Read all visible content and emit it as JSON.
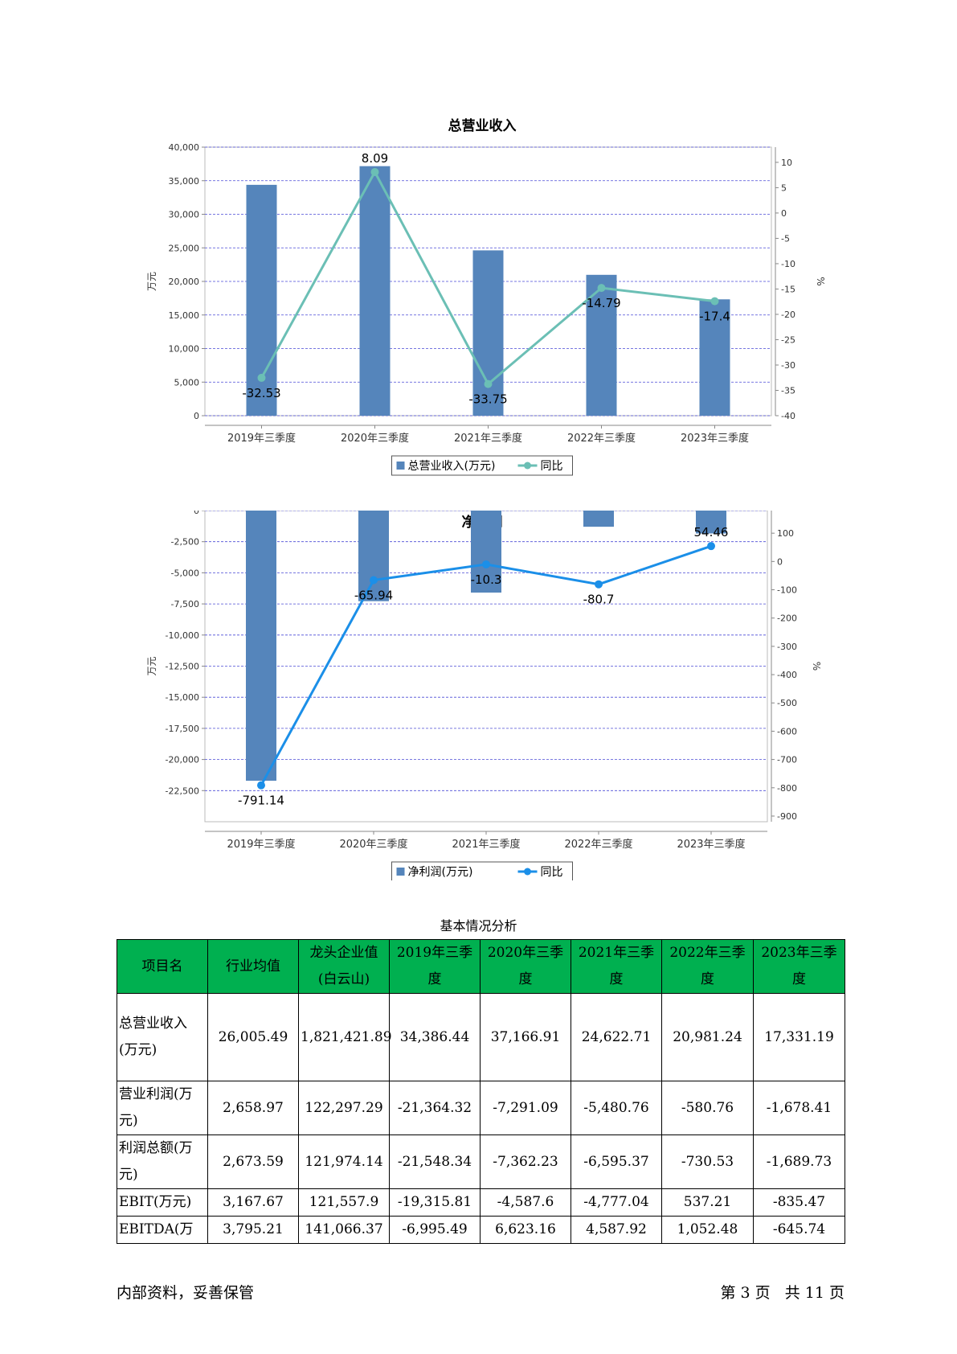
{
  "chart_data": [
    {
      "type": "bar+line",
      "title": "总营业收入",
      "categories": [
        "2019年三季度",
        "2020年三季度",
        "2021年三季度",
        "2022年三季度",
        "2023年三季度"
      ],
      "series": [
        {
          "name": "总营业收入(万元)",
          "type": "bar",
          "axis": "left",
          "color": "#5585bb",
          "values": [
            34386.44,
            37166.91,
            24622.71,
            20981.24,
            17331.19
          ]
        },
        {
          "name": "同比",
          "type": "line",
          "axis": "right",
          "color": "#6bbfb5",
          "values": [
            -32.53,
            8.09,
            -33.75,
            -14.79,
            -17.4
          ],
          "labels": [
            "-32.53",
            "8.09",
            "-33.75",
            "-14.79",
            "-17.4"
          ]
        }
      ],
      "ylabel": "万元",
      "y2label": "%",
      "ylim": [
        0,
        40000
      ],
      "yticks": [
        0,
        5000,
        10000,
        15000,
        20000,
        25000,
        30000,
        35000,
        40000
      ],
      "ytick_labels": [
        "0",
        "5,000",
        "10,000",
        "15,000",
        "20,000",
        "25,000",
        "30,000",
        "35,000",
        "40,000"
      ],
      "y2lim": [
        -40,
        13
      ],
      "y2ticks": [
        -40,
        -35,
        -30,
        -25,
        -20,
        -15,
        -10,
        -5,
        0,
        5,
        10
      ],
      "y2tick_labels": [
        "-40",
        "-35",
        "-30",
        "-25",
        "-20",
        "-15",
        "-10",
        "-5",
        "0",
        "5",
        "10"
      ],
      "grid": true,
      "legend": "bottom-center",
      "legend_items": [
        "总营业收入(万元)",
        "同比"
      ]
    },
    {
      "type": "bar+line",
      "title": "净利润",
      "categories": [
        "2019年三季度",
        "2020年三季度",
        "2021年三季度",
        "2022年三季度",
        "2023年三季度"
      ],
      "series": [
        {
          "name": "净利润(万元)",
          "type": "bar",
          "axis": "left",
          "color": "#5585bb",
          "values": [
            -21705,
            -7280,
            -6590,
            -1300,
            -1840
          ]
        },
        {
          "name": "同比",
          "type": "line",
          "axis": "right",
          "color": "#1b8fe8",
          "values": [
            -791.14,
            -65.94,
            -10.3,
            -80.7,
            54.46
          ],
          "labels": [
            "-791.14",
            "-65.94",
            "-10.3",
            "-80.7",
            "54.46"
          ]
        }
      ],
      "ylabel": "万元",
      "y2label": "%",
      "ylim": [
        -25000,
        0
      ],
      "yticks": [
        0,
        -2500,
        -5000,
        -7500,
        -10000,
        -12500,
        -15000,
        -17500,
        -20000,
        -22500
      ],
      "ytick_labels": [
        "0",
        "-2,500",
        "-5,000",
        "-7,500",
        "-10,000",
        "-12,500",
        "-15,000",
        "-17,500",
        "-20,000",
        "-22,500"
      ],
      "y2lim": [
        -920,
        180
      ],
      "y2ticks": [
        100,
        0,
        -100,
        -200,
        -300,
        -400,
        -500,
        -600,
        -700,
        -800,
        -900
      ],
      "y2tick_labels": [
        "100",
        "0",
        "-100",
        "-200",
        "-300",
        "-400",
        "-500",
        "-600",
        "-700",
        "-800",
        "-900"
      ],
      "grid": true,
      "legend": "bottom-center",
      "legend_items": [
        "净利润(万元)",
        "同比"
      ]
    }
  ],
  "table": {
    "title": "基本情况分析",
    "headers": [
      "项目名",
      "行业均值",
      "龙头企业值(白云山)",
      "2019年三季度",
      "2020年三季度",
      "2021年三季度",
      "2022年三季度",
      "2023年三季度"
    ],
    "rows": [
      [
        "总营业收入(万元)",
        "26,005.49",
        "1,821,421.89",
        "34,386.44",
        "37,166.91",
        "24,622.71",
        "20,981.24",
        "17,331.19"
      ],
      [
        "营业利润(万元)",
        "2,658.97",
        "122,297.29",
        "-21,364.32",
        "-7,291.09",
        "-5,480.76",
        "-580.76",
        "-1,678.41"
      ],
      [
        "利润总额(万元)",
        "2,673.59",
        "121,974.14",
        "-21,548.34",
        "-7,362.23",
        "-6,595.37",
        "-730.53",
        "-1,689.73"
      ],
      [
        "EBIT(万元)",
        "3,167.67",
        "121,557.9",
        "-19,315.81",
        "-4,587.6",
        "-4,777.04",
        "537.21",
        "-835.47"
      ],
      [
        "EBITDA(万",
        "3,795.21",
        "141,066.37",
        "-6,995.49",
        "6,623.16",
        "4,587.92",
        "1,052.48",
        "-645.74"
      ]
    ]
  },
  "footer": {
    "left": "内部资料，妥善保管",
    "right": "第 3 页   共 11 页"
  }
}
